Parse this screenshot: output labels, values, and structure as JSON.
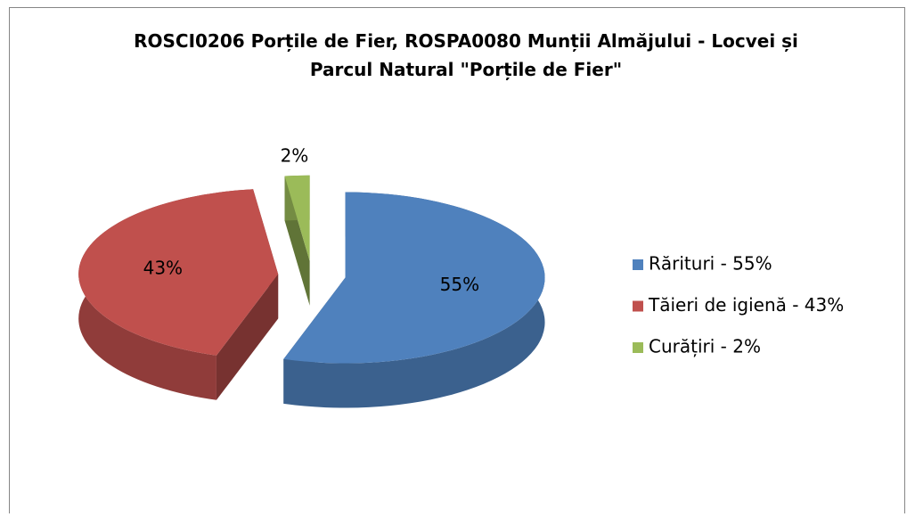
{
  "chart_data": {
    "type": "pie3d",
    "title": "ROSCI0206 Porțile de Fier, ROSPA0080 Munții Almăjului - Locvei și Parcul Natural \"Porțile de Fier\"",
    "categories": [
      "Rărituri - 55%",
      "Tăieri de igienă - 43%",
      "Curățiri - 2%"
    ],
    "values": [
      55,
      43,
      2
    ],
    "value_labels": [
      "55%",
      "43%",
      "2%"
    ],
    "colors": [
      "#4f81bd",
      "#c0504d",
      "#9bbb59"
    ],
    "legend": "right"
  }
}
